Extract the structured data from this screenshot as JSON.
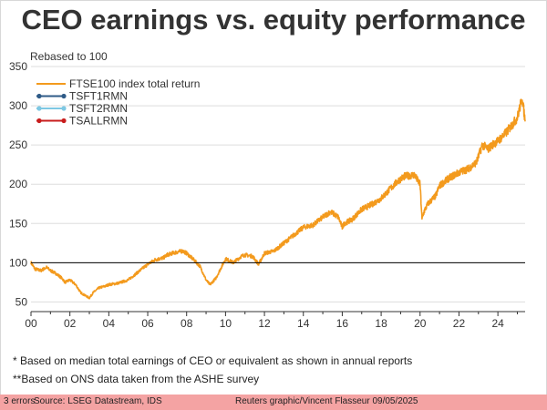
{
  "title": "CEO earnings vs. equity performance",
  "subtitle": "Rebased to 100",
  "footnotes": [
    "* Based on median total earnings of CEO or equivalent as shown in annual reports",
    "**Based on ONS data taken from the ASHE survey"
  ],
  "error_bar": {
    "count": "3 errors",
    "source": "Source: LSEG Datastream, IDS",
    "credit": "Reuters graphic/Vincent Flasseur 09/05/2025"
  },
  "colors": {
    "ftse": "#f39a1d",
    "tsft1": "#2f5b87",
    "tsft2": "#7ec8e3",
    "tsall": "#c81d1d",
    "grid": "#dddddd",
    "baseline": "#000000",
    "error_bar": "#f4a3a3"
  },
  "chart_data": {
    "type": "line",
    "title": "CEO earnings vs. equity performance",
    "subtitle": "Rebased to 100",
    "xlim": [
      2000,
      2025.4
    ],
    "ylim": [
      40,
      350
    ],
    "x_ticks": [
      2000,
      2002,
      2004,
      2006,
      2008,
      2010,
      2012,
      2014,
      2016,
      2018,
      2020,
      2022,
      2024
    ],
    "x_tick_labels": [
      "00",
      "02",
      "04",
      "06",
      "08",
      "10",
      "12",
      "14",
      "16",
      "18",
      "20",
      "22",
      "24"
    ],
    "y_ticks": [
      50,
      100,
      150,
      200,
      250,
      300,
      350
    ],
    "y_tick_labels": [
      "50",
      "100",
      "150",
      "200",
      "250",
      "300",
      "350"
    ],
    "reference_line": 100,
    "grid": "horizontal",
    "legend_position": "top-left",
    "series": [
      {
        "name": "FTSE100 index total return",
        "x": [
          2000,
          2000.2,
          2000.5,
          2000.8,
          2001,
          2001.3,
          2001.6,
          2001.75,
          2002,
          2002.3,
          2002.55,
          2002.8,
          2003.0,
          2003.2,
          2003.5,
          2003.8,
          2004,
          2004.5,
          2005,
          2005.5,
          2006,
          2006.4,
          2006.8,
          2007,
          2007.4,
          2007.8,
          2008,
          2008.4,
          2008.7,
          2009.0,
          2009.2,
          2009.5,
          2009.8,
          2010,
          2010.4,
          2010.8,
          2011,
          2011.4,
          2011.7,
          2012,
          2012.5,
          2013,
          2013.5,
          2014,
          2014.5,
          2015,
          2015.4,
          2015.8,
          2016.0,
          2016.1,
          2016.5,
          2017,
          2017.5,
          2018,
          2018.5,
          2018.9,
          2019.2,
          2019.7,
          2020.0,
          2020.1,
          2020.2,
          2020.4,
          2020.8,
          2021.0,
          2021.5,
          2022,
          2022.5,
          2022.9,
          2023.2,
          2023.5,
          2023.8,
          2024,
          2024.4,
          2024.8,
          2025.0,
          2025.15,
          2025.25,
          2025.35,
          2025.4
        ],
        "values": [
          100,
          92,
          90,
          94,
          90,
          86,
          80,
          75,
          78,
          72,
          62,
          58,
          55,
          62,
          68,
          70,
          72,
          74,
          78,
          88,
          98,
          104,
          106,
          110,
          113,
          115,
          112,
          103,
          95,
          78,
          72,
          80,
          95,
          105,
          100,
          108,
          110,
          108,
          98,
          112,
          115,
          125,
          135,
          145,
          148,
          158,
          165,
          158,
          145,
          150,
          155,
          168,
          174,
          182,
          195,
          205,
          210,
          212,
          200,
          155,
          165,
          175,
          185,
          198,
          208,
          215,
          220,
          228,
          250,
          245,
          252,
          255,
          265,
          278,
          285,
          300,
          310,
          290,
          280
        ]
      },
      {
        "name": "TSFT1RMN",
        "values": []
      },
      {
        "name": "TSFT2RMN",
        "values": []
      },
      {
        "name": "TSALLRMN",
        "values": []
      }
    ]
  }
}
